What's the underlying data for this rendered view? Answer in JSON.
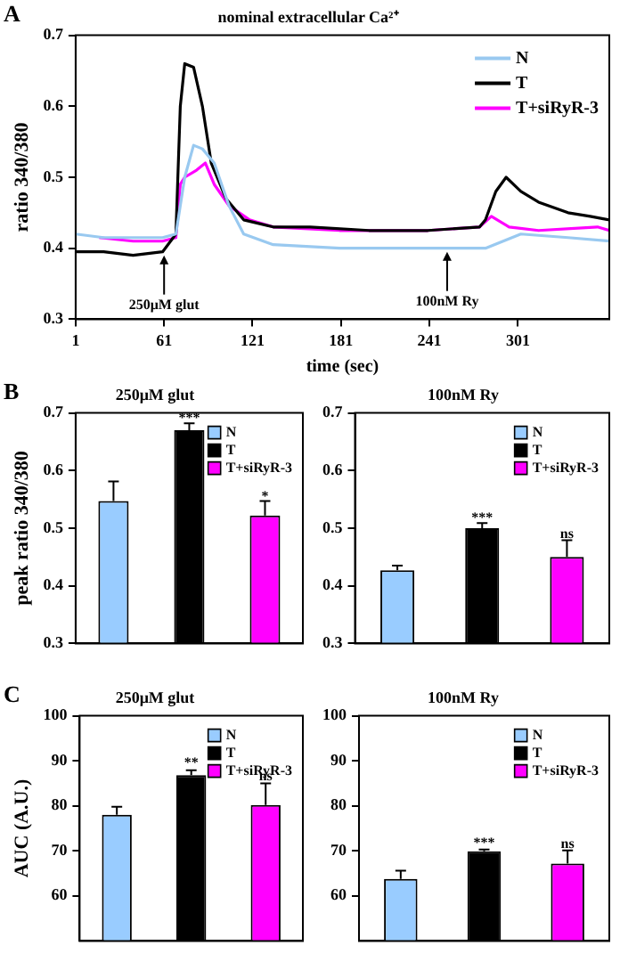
{
  "chart_data": [
    {
      "type": "line",
      "title": "nominal extracellular Ca²⁺",
      "xlabel": "time (sec)",
      "ylabel": "ratio 340/380",
      "xlim": [
        1,
        363
      ],
      "xticks": [
        1,
        61,
        121,
        181,
        241,
        301
      ],
      "ylim": [
        0.3,
        0.7
      ],
      "yticks": [
        0.3,
        0.4,
        0.5,
        0.6,
        0.7
      ],
      "legend": "top right",
      "marker": "none",
      "line_style": "solid",
      "annotations": [
        "A",
        {
          "text": "250μM glut",
          "x": 61,
          "y": 0.39
        },
        {
          "text": "100nM Ry",
          "x": 253,
          "y": 0.395
        }
      ],
      "series": [
        {
          "name": "N",
          "color": "#99c9f0",
          "x": [
            1,
            20,
            60,
            69,
            75,
            81,
            87,
            95,
            105,
            115,
            135,
            180,
            240,
            279,
            303,
            335,
            363
          ],
          "values": [
            0.42,
            0.415,
            0.415,
            0.42,
            0.5,
            0.545,
            0.54,
            0.52,
            0.46,
            0.42,
            0.405,
            0.4,
            0.4,
            0.4,
            0.42,
            0.415,
            0.41
          ]
        },
        {
          "name": "T",
          "color": "#000000",
          "x": [
            1,
            20,
            40,
            60,
            69,
            72,
            75,
            81,
            87,
            93,
            103,
            115,
            135,
            160,
            200,
            240,
            275,
            279,
            286,
            293,
            303,
            315,
            335,
            350,
            363
          ],
          "values": [
            0.395,
            0.395,
            0.39,
            0.395,
            0.42,
            0.6,
            0.66,
            0.655,
            0.6,
            0.52,
            0.47,
            0.44,
            0.43,
            0.43,
            0.425,
            0.425,
            0.43,
            0.44,
            0.48,
            0.5,
            0.48,
            0.465,
            0.45,
            0.445,
            0.44
          ]
        },
        {
          "name": "T+siRyR-3",
          "color": "#ff00ff",
          "x": [
            17,
            40,
            60,
            69,
            72,
            75,
            83,
            89,
            95,
            105,
            119,
            135,
            180,
            240,
            275,
            283,
            295,
            315,
            355,
            363
          ],
          "values": [
            0.415,
            0.41,
            0.41,
            0.415,
            0.49,
            0.5,
            0.51,
            0.52,
            0.49,
            0.46,
            0.44,
            0.43,
            0.425,
            0.425,
            0.43,
            0.445,
            0.43,
            0.425,
            0.43,
            0.425
          ]
        }
      ]
    },
    {
      "type": "bar",
      "title": "250μM glut",
      "ylabel": "peak ratio 340/380",
      "categories": [
        null,
        null,
        null
      ],
      "ylim": [
        0.3,
        0.7
      ],
      "yticks": [
        0.3,
        0.4,
        0.5,
        0.6,
        0.7
      ],
      "legend": "top right",
      "annotations": [
        "B",
        {
          "text": "***",
          "y": 0.69
        },
        {
          "text": "*",
          "y": 0.555
        }
      ],
      "series": [
        {
          "name": "N",
          "color": "#99ccff",
          "values": [
            0.547,
            null,
            null
          ],
          "errors": [
            0.034,
            null,
            null
          ]
        },
        {
          "name": "T",
          "color": "#000000",
          "values": [
            null,
            0.67,
            null
          ],
          "errors": [
            null,
            0.012,
            null
          ]
        },
        {
          "name": "T+siRyR-3",
          "color": "#ff00ff",
          "values": [
            null,
            null,
            0.522
          ],
          "errors": [
            null,
            null,
            0.025
          ]
        }
      ]
    },
    {
      "type": "bar",
      "title": "100nM Ry",
      "categories": [
        null,
        null,
        null
      ],
      "ylim": [
        0.3,
        0.7
      ],
      "yticks": [
        0.3,
        0.4,
        0.5,
        0.6,
        0.7
      ],
      "legend": "top right",
      "annotations": [
        {
          "text": "***",
          "y": 0.517
        },
        {
          "text": "ns",
          "y": 0.49
        }
      ],
      "series": [
        {
          "name": "N",
          "color": "#99ccff",
          "values": [
            0.427,
            null,
            null
          ],
          "errors": [
            0.008,
            null,
            null
          ]
        },
        {
          "name": "T",
          "color": "#000000",
          "values": [
            null,
            0.5,
            null
          ],
          "errors": [
            null,
            0.009,
            null
          ]
        },
        {
          "name": "T+siRyR-3",
          "color": "#ff00ff",
          "values": [
            null,
            null,
            0.45
          ],
          "errors": [
            null,
            null,
            0.029
          ]
        }
      ]
    },
    {
      "type": "bar",
      "title": "250μM glut",
      "ylabel": "AUC (A.U.)",
      "categories": [
        null,
        null,
        null
      ],
      "ylim": [
        50,
        100
      ],
      "yticks": [
        60,
        70,
        80,
        90,
        100
      ],
      "legend": "top right",
      "annotations": [
        "C",
        {
          "text": "**",
          "y": 89.5
        },
        {
          "text": "ns",
          "y": 86.5
        }
      ],
      "series": [
        {
          "name": "N",
          "color": "#99ccff",
          "values": [
            78,
            null,
            null
          ],
          "errors": [
            1.8,
            null,
            null
          ]
        },
        {
          "name": "T",
          "color": "#000000",
          "values": [
            null,
            86.8,
            null
          ],
          "errors": [
            null,
            1.1,
            null
          ]
        },
        {
          "name": "T+siRyR-3",
          "color": "#ff00ff",
          "values": [
            null,
            null,
            80.2
          ],
          "errors": [
            null,
            null,
            4.8
          ]
        }
      ]
    },
    {
      "type": "bar",
      "title": "100nM Ry",
      "categories": [
        null,
        null,
        null
      ],
      "ylim": [
        50,
        100
      ],
      "yticks": [
        60,
        70,
        80,
        90,
        100
      ],
      "legend": "top right",
      "annotations": [
        {
          "text": "***",
          "y": 71.6
        },
        {
          "text": "ns",
          "y": 71.5
        }
      ],
      "series": [
        {
          "name": "N",
          "color": "#99ccff",
          "values": [
            63.8,
            null,
            null
          ],
          "errors": [
            1.8,
            null,
            null
          ]
        },
        {
          "name": "T",
          "color": "#000000",
          "values": [
            null,
            69.9,
            null
          ],
          "errors": [
            null,
            0.4,
            null
          ]
        },
        {
          "name": "T+siRyR-3",
          "color": "#ff00ff",
          "values": [
            null,
            null,
            67.2
          ],
          "errors": [
            null,
            null,
            2.9
          ]
        }
      ]
    }
  ]
}
